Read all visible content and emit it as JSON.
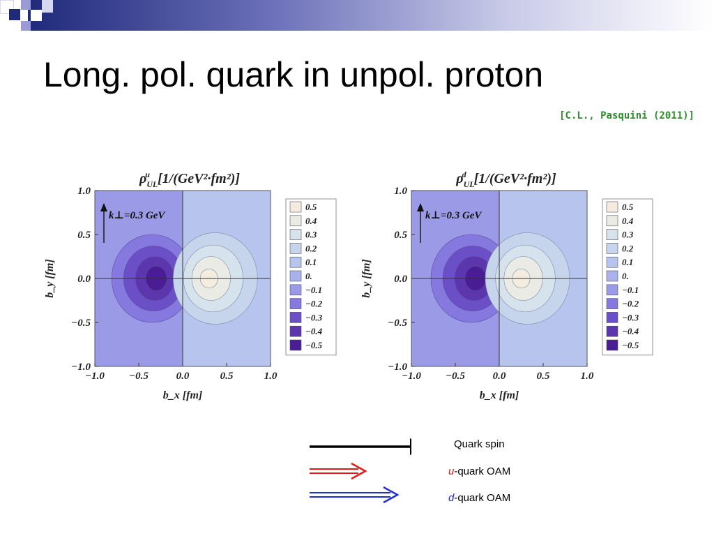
{
  "slide": {
    "title": "Long. pol. quark in unpol. proton",
    "citation": "[C.L., Pasquini (2011)]"
  },
  "colors": {
    "deco_navy": "#1f2a7a",
    "deco_lavender": "#9a9bd6",
    "citation_green": "#2e8b2e",
    "u_arrow": "#e51616",
    "d_arrow": "#1f2fd6",
    "spin_arrow": "#000000"
  },
  "chart_data": [
    {
      "type": "contour",
      "title": "ρ^u_UL [1/(GeV²·fm²)]",
      "title_parts": {
        "rho": "ρ",
        "sup": "u",
        "sub": "UL",
        "unit": "[1/(GeV²·fm²)]"
      },
      "xlabel": "b_x [fm]",
      "ylabel": "b_y [fm]",
      "xlim": [
        -1.0,
        1.0
      ],
      "ylim": [
        -1.0,
        1.0
      ],
      "xticks": [
        "−1.0",
        "−0.5",
        "0.0",
        "0.5",
        "1.0"
      ],
      "yticks": [
        "−1.0",
        "−0.5",
        "0.0",
        "0.5",
        "1.0"
      ],
      "annotation": "k⊥=0.3 GeV",
      "levels": [
        "0.5",
        "0.4",
        "0.3",
        "0.2",
        "0.1",
        "0.",
        "−0.1",
        "−0.2",
        "−0.3",
        "−0.4",
        "−0.5"
      ],
      "level_colors": [
        "#f3ecdf",
        "#e9ebe4",
        "#d6e2ec",
        "#c7d5ec",
        "#b7c5ee",
        "#a9b2ea",
        "#9b9ae6",
        "#8579df",
        "#6a4fc6",
        "#5c36ad",
        "#4a1d94"
      ],
      "extrema": [
        {
          "x": -0.3,
          "y": 0.0,
          "value": -0.5
        },
        {
          "x": 0.3,
          "y": 0.0,
          "value": 0.5
        }
      ]
    },
    {
      "type": "contour",
      "title": "ρ^d_UL [1/(GeV²·fm²)]",
      "title_parts": {
        "rho": "ρ",
        "sup": "d",
        "sub": "UL",
        "unit": "[1/(GeV²·fm²)]"
      },
      "xlabel": "b_x [fm]",
      "ylabel": "b_y [fm]",
      "xlim": [
        -1.0,
        1.0
      ],
      "ylim": [
        -1.0,
        1.0
      ],
      "xticks": [
        "−1.0",
        "−0.5",
        "0.0",
        "0.5",
        "1.0"
      ],
      "yticks": [
        "−1.0",
        "−0.5",
        "0.0",
        "0.5",
        "1.0"
      ],
      "annotation": "k⊥=0.3 GeV",
      "levels": [
        "0.5",
        "0.4",
        "0.3",
        "0.2",
        "0.1",
        "0.",
        "−0.1",
        "−0.2",
        "−0.3",
        "−0.4",
        "−0.5"
      ],
      "level_colors": [
        "#f3ecdf",
        "#e9ebe4",
        "#d6e2ec",
        "#c7d5ec",
        "#b7c5ee",
        "#a9b2ea",
        "#9b9ae6",
        "#8579df",
        "#6a4fc6",
        "#5c36ad",
        "#4a1d94"
      ],
      "extrema": [
        {
          "x": -0.27,
          "y": 0.0,
          "value": -0.5
        },
        {
          "x": 0.25,
          "y": 0.0,
          "value": 0.4
        }
      ]
    }
  ],
  "arrow_legend": [
    {
      "arrow": "single-black",
      "text_plain": "Quark spin",
      "italic": "",
      "rest": ""
    },
    {
      "arrow": "double-red",
      "text_plain": "",
      "italic": "u",
      "rest": "-quark OAM"
    },
    {
      "arrow": "double-blue",
      "text_plain": "",
      "italic": "d",
      "rest": "-quark OAM"
    }
  ]
}
